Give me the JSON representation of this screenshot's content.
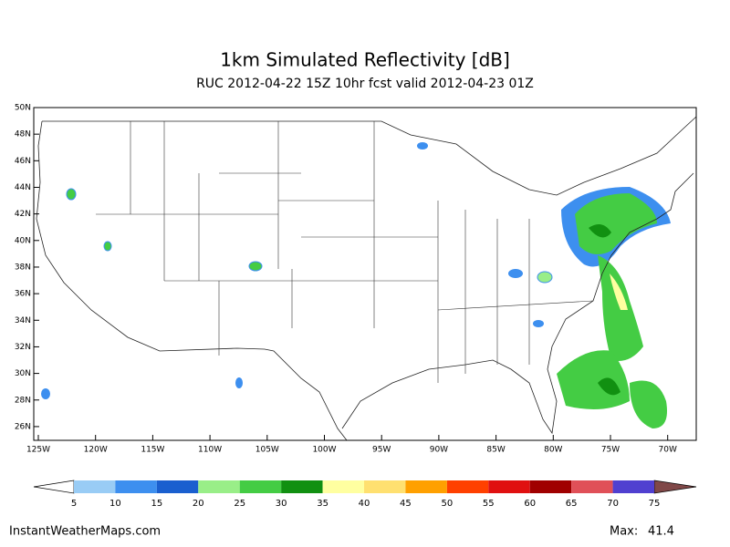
{
  "title": "1km Simulated Reflectivity [dB]",
  "subtitle": "RUC 2012-04-22 15Z 10hr fcst valid 2012-04-23 01Z",
  "lat_ticks": [
    {
      "value": 50,
      "label": "50N"
    },
    {
      "value": 48,
      "label": "48N"
    },
    {
      "value": 46,
      "label": "46N"
    },
    {
      "value": 44,
      "label": "44N"
    },
    {
      "value": 42,
      "label": "42N"
    },
    {
      "value": 40,
      "label": "40N"
    },
    {
      "value": 38,
      "label": "38N"
    },
    {
      "value": 36,
      "label": "36N"
    },
    {
      "value": 34,
      "label": "34N"
    },
    {
      "value": 32,
      "label": "32N"
    },
    {
      "value": 30,
      "label": "30N"
    },
    {
      "value": 28,
      "label": "28N"
    },
    {
      "value": 26,
      "label": "26N"
    }
  ],
  "lon_ticks": [
    {
      "value": 125,
      "label": "125W"
    },
    {
      "value": 120,
      "label": "120W"
    },
    {
      "value": 115,
      "label": "115W"
    },
    {
      "value": 110,
      "label": "110W"
    },
    {
      "value": 105,
      "label": "105W"
    },
    {
      "value": 100,
      "label": "100W"
    },
    {
      "value": 95,
      "label": "95W"
    },
    {
      "value": 90,
      "label": "90W"
    },
    {
      "value": 85,
      "label": "85W"
    },
    {
      "value": 80,
      "label": "80W"
    },
    {
      "value": 75,
      "label": "75W"
    },
    {
      "value": 70,
      "label": "70W"
    }
  ],
  "colorbar": {
    "levels": [
      5,
      10,
      15,
      20,
      25,
      30,
      35,
      40,
      45,
      50,
      55,
      60,
      65,
      70,
      75
    ],
    "colors": [
      "#99ccf5",
      "#3d8fef",
      "#1a5fcf",
      "#99ee88",
      "#44cc44",
      "#119011",
      "#ffffa0",
      "#ffe070",
      "#ffa000",
      "#ff4000",
      "#e01010",
      "#a00000",
      "#e05058",
      "#5040d0"
    ],
    "under_color": "#ffffff",
    "over_color": "#804848"
  },
  "footer": "InstantWeatherMaps.com",
  "max_label": "Max:",
  "max_value": 41.4
}
